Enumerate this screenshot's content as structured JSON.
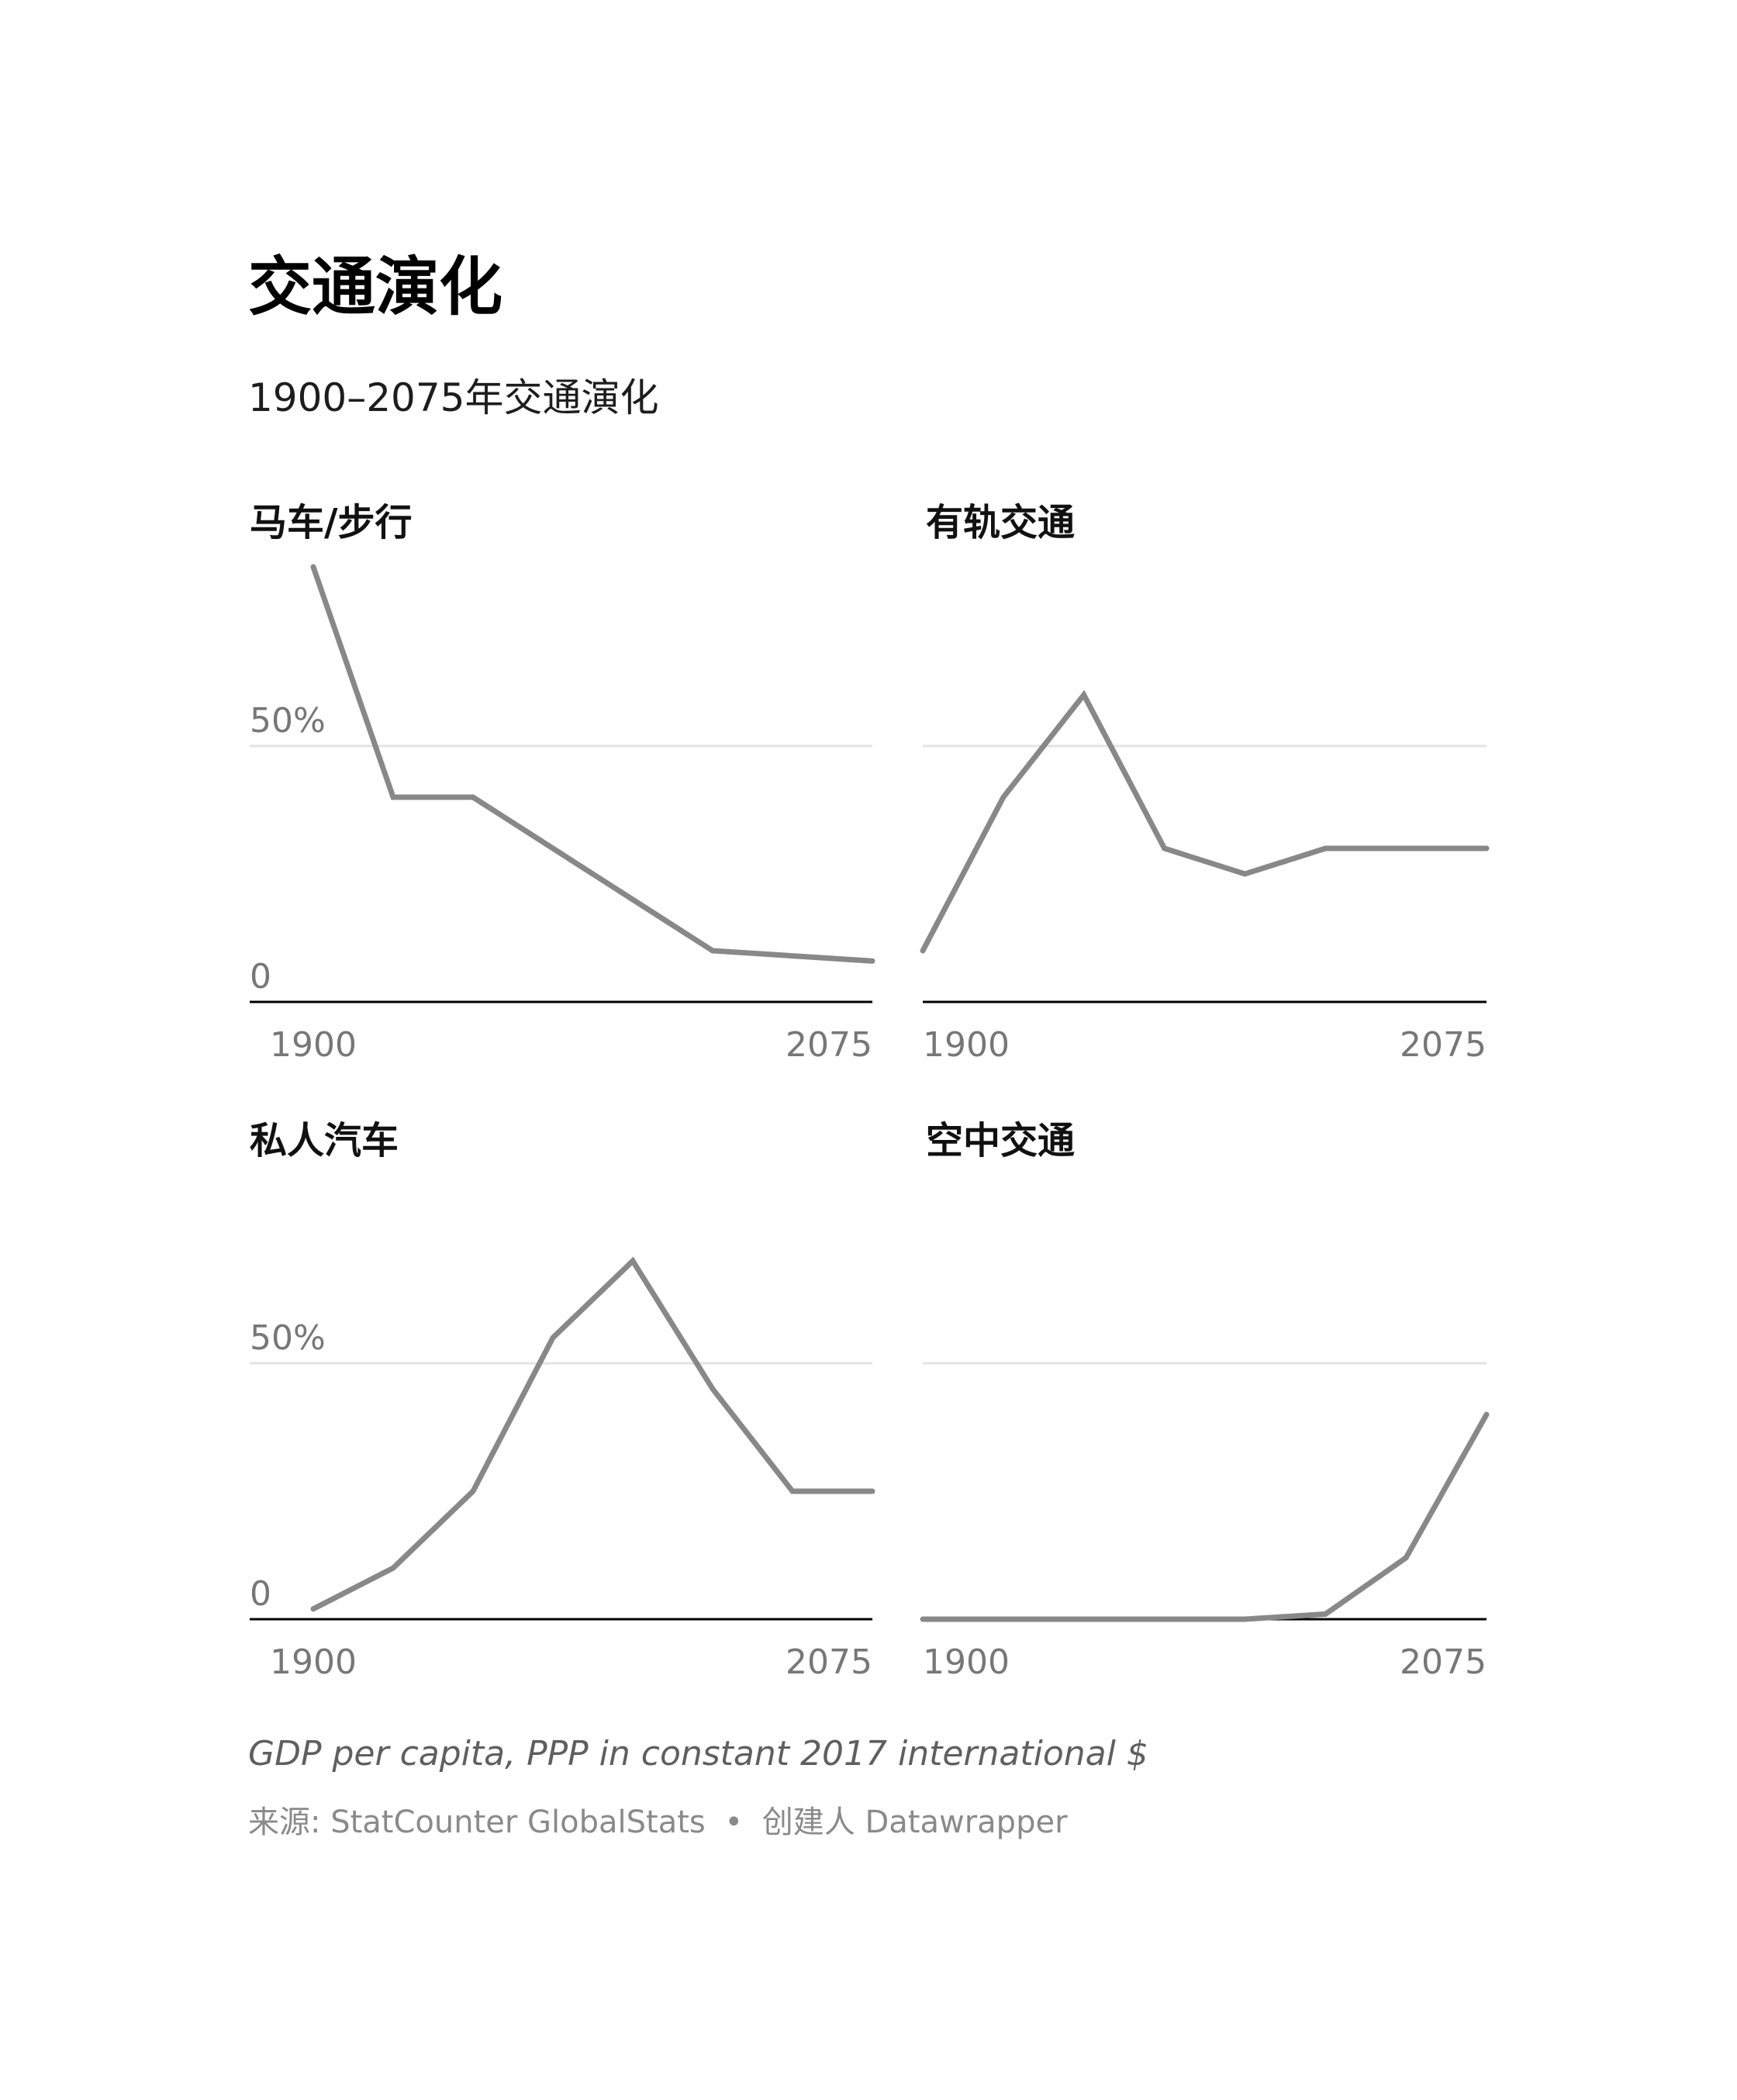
{
  "title": "交通演化",
  "subtitle": "1900–2075年交通演化",
  "chart_data": [
    {
      "type": "line",
      "title": "马车/步行",
      "x": [
        1900,
        1925,
        1950,
        1975,
        2000,
        2025,
        2050,
        2075
      ],
      "values": [
        85,
        40,
        40,
        30,
        20,
        10,
        9,
        8
      ],
      "ylim": [
        0,
        100
      ],
      "yticks": [
        0,
        50
      ],
      "ytick_labels": [
        "0",
        "50%"
      ],
      "xtick_labels": [
        "1900",
        "2075"
      ],
      "line_color": "#888888"
    },
    {
      "type": "line",
      "title": "有轨交通",
      "x": [
        1900,
        1925,
        1950,
        1975,
        2000,
        2025,
        2050,
        2075
      ],
      "values": [
        10,
        40,
        60,
        30,
        25,
        30,
        30,
        30
      ],
      "ylim": [
        0,
        100
      ],
      "yticks": [
        0,
        50
      ],
      "ytick_labels": [],
      "xtick_labels": [
        "1900",
        "2075"
      ],
      "line_color": "#888888"
    },
    {
      "type": "line",
      "title": "私人汽车",
      "x": [
        1900,
        1925,
        1950,
        1975,
        2000,
        2025,
        2050,
        2075
      ],
      "values": [
        2,
        10,
        25,
        55,
        70,
        45,
        25,
        25
      ],
      "ylim": [
        0,
        100
      ],
      "yticks": [
        0,
        50
      ],
      "ytick_labels": [
        "0",
        "50%"
      ],
      "xtick_labels": [
        "1900",
        "2075"
      ],
      "line_color": "#888888"
    },
    {
      "type": "line",
      "title": "空中交通",
      "x": [
        1900,
        1925,
        1950,
        1975,
        2000,
        2025,
        2050,
        2075
      ],
      "values": [
        0,
        0,
        0,
        0,
        0,
        1,
        12,
        40
      ],
      "ylim": [
        0,
        100
      ],
      "yticks": [
        0,
        50
      ],
      "ytick_labels": [],
      "xtick_labels": [
        "1900",
        "2075"
      ],
      "line_color": "#888888"
    }
  ],
  "notes": "GDP per capita, PPP in constant 2017 international $",
  "source": {
    "label": "来源:",
    "name": "StatCounter GlobalStats",
    "separator": "•",
    "credit": "创建人 Datawrapper"
  },
  "colors": {
    "line": "#888888",
    "baseline": "#000000",
    "grid": "#e3e3e3",
    "tick_text": "#777777"
  }
}
